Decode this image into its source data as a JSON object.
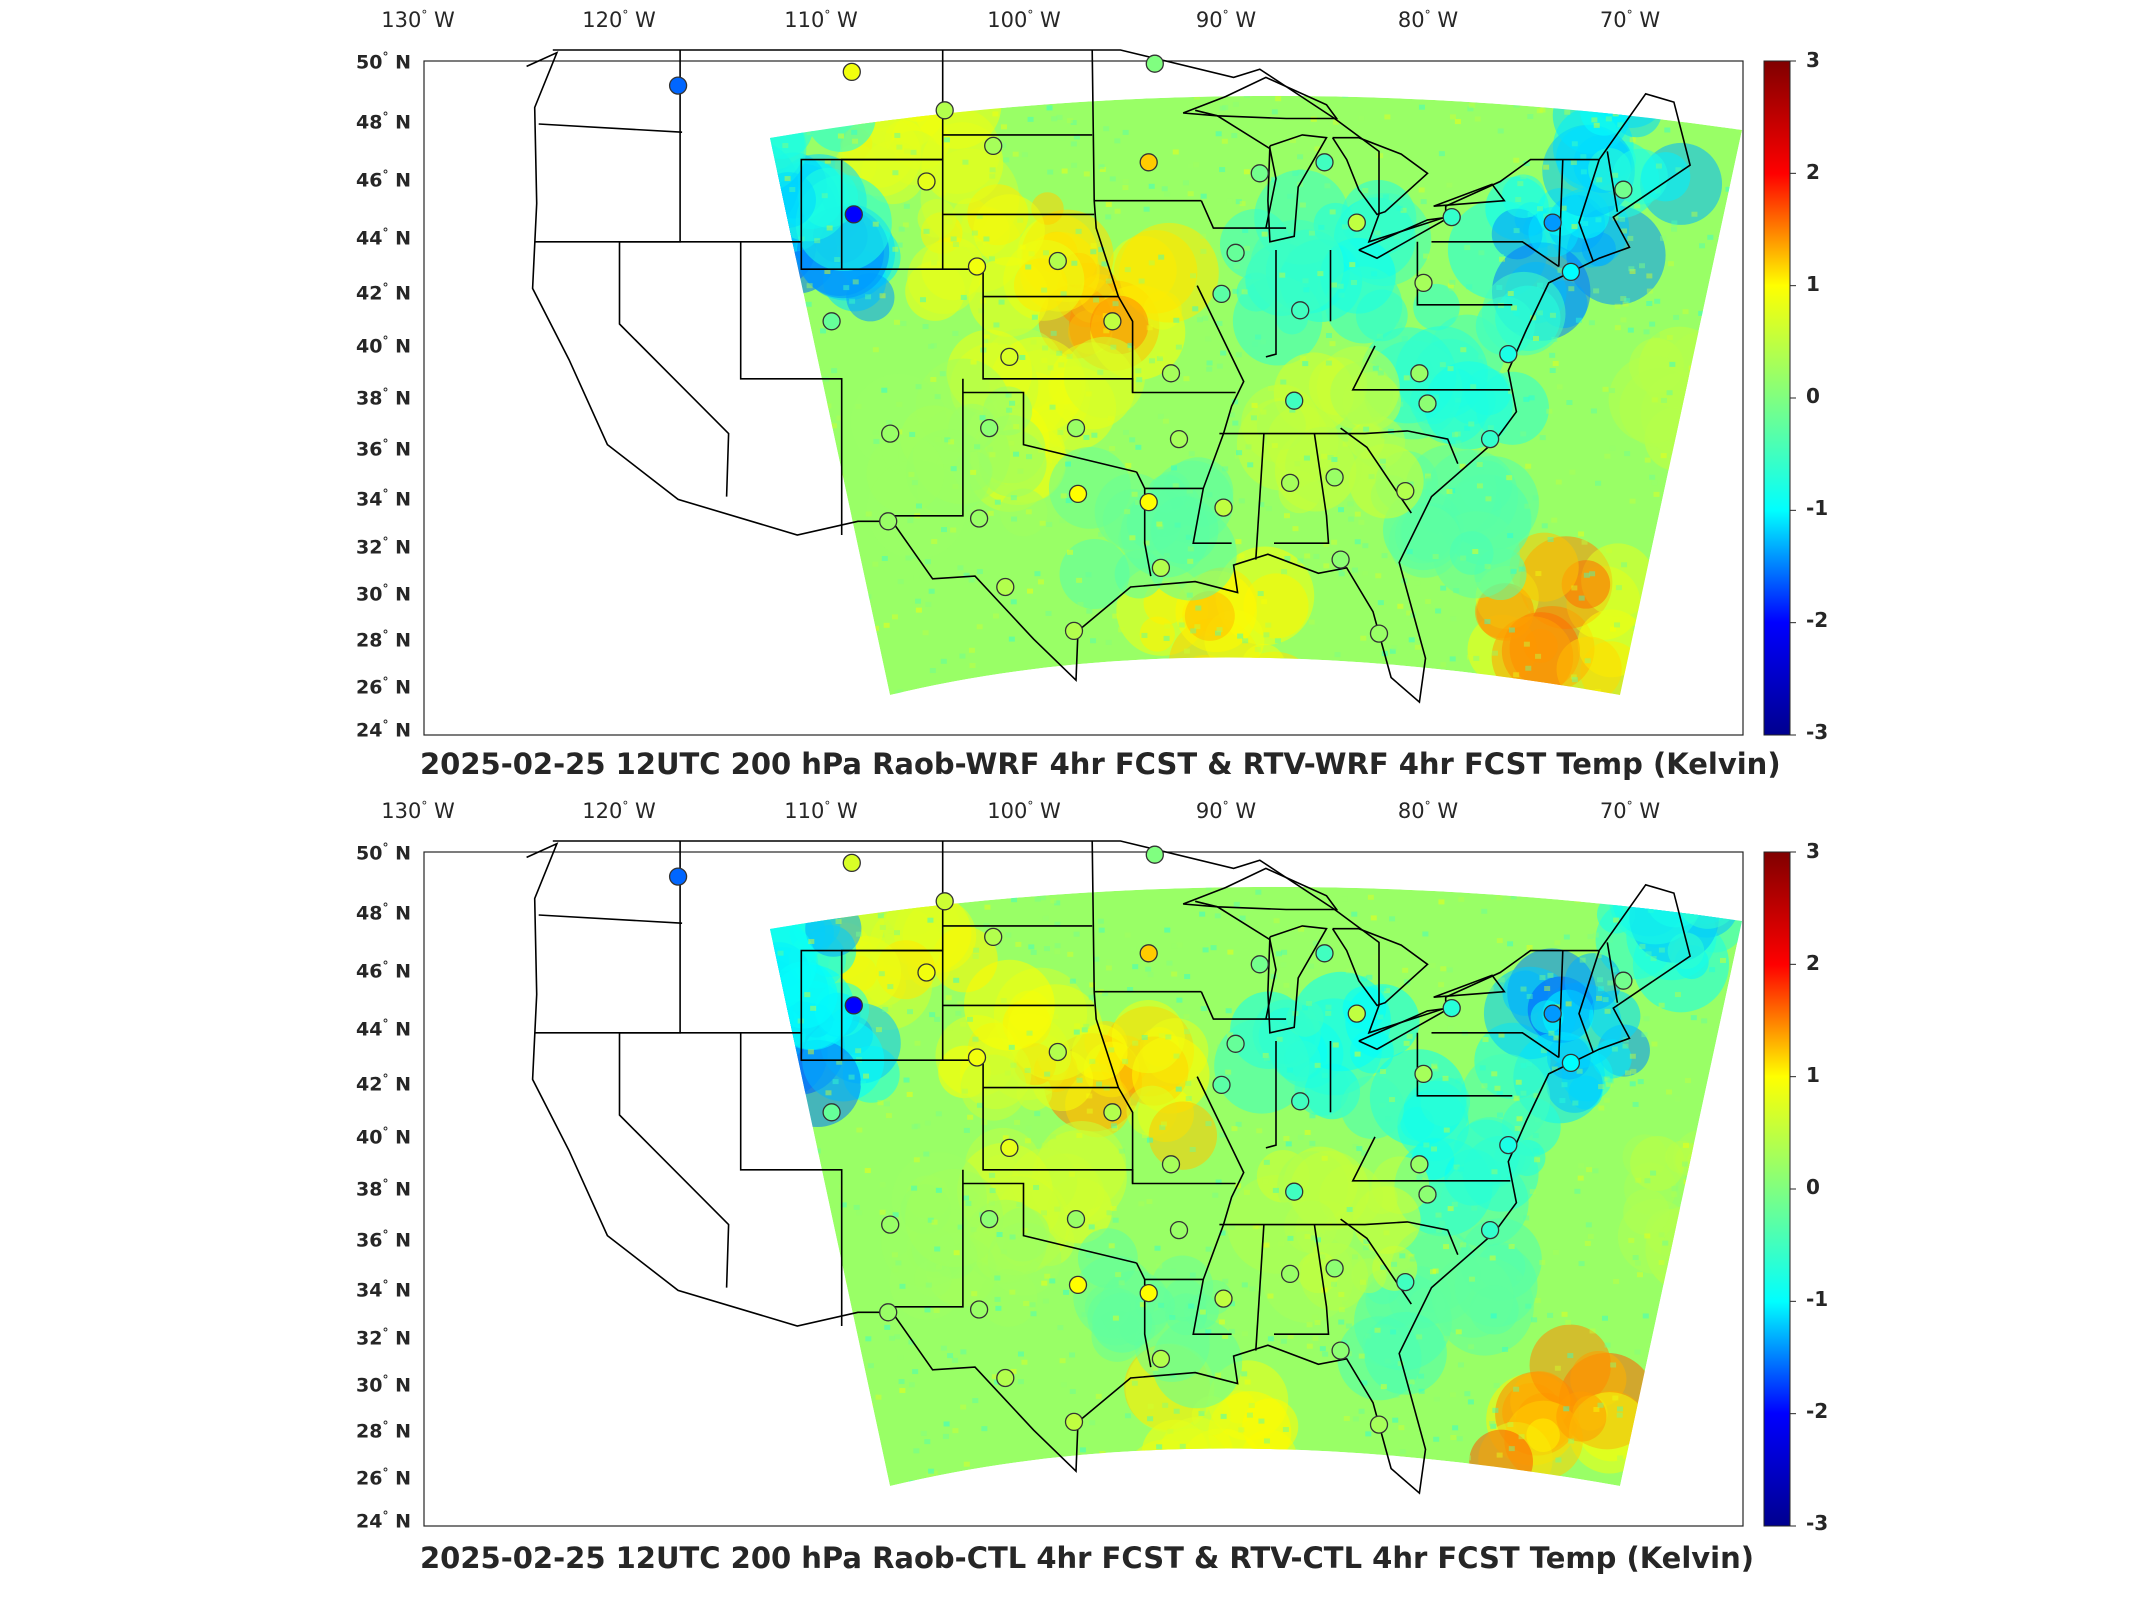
{
  "panels": [
    {
      "title": "2025-02-25 12UTC 200 hPa Raob-WRF 4hr FCST & RTV-WRF 4hr FCST Temp (Kelvin)",
      "lon_ticks": [
        "130",
        "120",
        "110",
        "100",
        "90",
        "80",
        "70"
      ],
      "lon_unit": "W",
      "lat_ticks": [
        "50",
        "48",
        "46",
        "44",
        "42",
        "40",
        "38",
        "36",
        "34",
        "32",
        "30",
        "28",
        "26",
        "24"
      ],
      "lat_unit": "N",
      "colorbar": {
        "ticks": [
          "3",
          "2",
          "1",
          "0",
          "-1",
          "-2",
          "-3"
        ],
        "range": [
          -3,
          3
        ],
        "units": "Kelvin"
      }
    },
    {
      "title": "2025-02-25 12UTC 200 hPa Raob-CTL 4hr FCST & RTV-CTL 4hr FCST Temp (Kelvin)",
      "lon_ticks": [
        "130",
        "120",
        "110",
        "100",
        "90",
        "80",
        "70"
      ],
      "lon_unit": "W",
      "lat_ticks": [
        "50",
        "48",
        "46",
        "44",
        "42",
        "40",
        "38",
        "36",
        "34",
        "32",
        "30",
        "28",
        "26",
        "24"
      ],
      "lat_unit": "N",
      "colorbar": {
        "ticks": [
          "3",
          "2",
          "1",
          "0",
          "-1",
          "-2",
          "-3"
        ],
        "range": [
          -3,
          3
        ],
        "units": "Kelvin"
      }
    }
  ],
  "colormap": [
    "#00008f",
    "#0000ff",
    "#00ffff",
    "#80ff80",
    "#ffff00",
    "#ff0000",
    "#800000"
  ],
  "raob_stations": [
    {
      "lon": -117.1,
      "lat": 47.7,
      "top": -1.6,
      "bottom": -1.6
    },
    {
      "lon": -108.5,
      "lat": 48.2,
      "top": 0.9,
      "bottom": 0.7
    },
    {
      "lon": -103.9,
      "lat": 46.8,
      "top": 0.4,
      "bottom": 0.6
    },
    {
      "lon": -101.5,
      "lat": 45.5,
      "top": 0.3,
      "bottom": 0.4
    },
    {
      "lon": -104.8,
      "lat": 44.2,
      "top": 0.8,
      "bottom": 0.9
    },
    {
      "lon": -108.4,
      "lat": 43.0,
      "top": -2.0,
      "bottom": -2.0
    },
    {
      "lon": -93.5,
      "lat": 48.5,
      "top": 0.0,
      "bottom": 0.0
    },
    {
      "lon": -93.8,
      "lat": 44.9,
      "top": 1.2,
      "bottom": 1.2
    },
    {
      "lon": -102.3,
      "lat": 41.1,
      "top": 0.9,
      "bottom": 0.9
    },
    {
      "lon": -98.3,
      "lat": 41.3,
      "top": 0.4,
      "bottom": 0.4
    },
    {
      "lon": -89.5,
      "lat": 41.6,
      "top": -0.2,
      "bottom": -0.2
    },
    {
      "lon": -88.3,
      "lat": 44.5,
      "top": -0.1,
      "bottom": -0.1
    },
    {
      "lon": -85.1,
      "lat": 44.9,
      "top": -0.5,
      "bottom": -0.5
    },
    {
      "lon": -83.5,
      "lat": 42.7,
      "top": 0.5,
      "bottom": 0.5
    },
    {
      "lon": -78.8,
      "lat": 42.9,
      "top": -0.6,
      "bottom": -0.7
    },
    {
      "lon": -73.8,
      "lat": 42.7,
      "top": -1.4,
      "bottom": -1.4
    },
    {
      "lon": -70.3,
      "lat": 43.9,
      "top": -0.1,
      "bottom": -0.1
    },
    {
      "lon": -72.9,
      "lat": 40.9,
      "top": -1.0,
      "bottom": -1.0
    },
    {
      "lon": -80.2,
      "lat": 40.5,
      "top": 0.3,
      "bottom": 0.3
    },
    {
      "lon": -86.3,
      "lat": 39.5,
      "top": -0.5,
      "bottom": -0.5
    },
    {
      "lon": -90.2,
      "lat": 40.1,
      "top": -0.3,
      "bottom": -0.3
    },
    {
      "lon": -95.6,
      "lat": 39.1,
      "top": 0.5,
      "bottom": 0.4
    },
    {
      "lon": -100.7,
      "lat": 37.8,
      "top": 0.7,
      "bottom": 0.8
    },
    {
      "lon": -109.5,
      "lat": 39.1,
      "top": -0.2,
      "bottom": -0.2
    },
    {
      "lon": -92.7,
      "lat": 37.2,
      "top": 0.3,
      "bottom": 0.3
    },
    {
      "lon": -80.4,
      "lat": 37.2,
      "top": 0.2,
      "bottom": 0.2
    },
    {
      "lon": -76.0,
      "lat": 37.9,
      "top": -0.8,
      "bottom": -0.8
    },
    {
      "lon": -86.6,
      "lat": 36.2,
      "top": -0.5,
      "bottom": -0.5
    },
    {
      "lon": -80.0,
      "lat": 36.1,
      "top": 0.1,
      "bottom": 0.1
    },
    {
      "lon": -76.9,
      "lat": 34.8,
      "top": -0.6,
      "bottom": -0.6
    },
    {
      "lon": -106.6,
      "lat": 35.0,
      "top": 0.2,
      "bottom": 0.2
    },
    {
      "lon": -101.7,
      "lat": 35.2,
      "top": 0.1,
      "bottom": 0.1
    },
    {
      "lon": -97.4,
      "lat": 35.2,
      "top": 0.2,
      "bottom": 0.2
    },
    {
      "lon": -92.3,
      "lat": 34.8,
      "top": 0.3,
      "bottom": 0.2
    },
    {
      "lon": -86.8,
      "lat": 33.2,
      "top": 0.3,
      "bottom": 0.2
    },
    {
      "lon": -84.6,
      "lat": 33.4,
      "top": 0.2,
      "bottom": 0.1
    },
    {
      "lon": -81.1,
      "lat": 32.9,
      "top": 0.4,
      "bottom": -0.5
    },
    {
      "lon": -90.1,
      "lat": 32.3,
      "top": 0.5,
      "bottom": 0.5
    },
    {
      "lon": -97.3,
      "lat": 32.8,
      "top": 1.0,
      "bottom": 1.0
    },
    {
      "lon": -93.8,
      "lat": 32.5,
      "top": 1.0,
      "bottom": 1.0
    },
    {
      "lon": -102.2,
      "lat": 31.9,
      "top": 0.2,
      "bottom": 0.2
    },
    {
      "lon": -106.7,
      "lat": 31.8,
      "top": 0.2,
      "bottom": 0.2
    },
    {
      "lon": -100.9,
      "lat": 29.4,
      "top": 0.4,
      "bottom": 0.4
    },
    {
      "lon": -97.5,
      "lat": 27.8,
      "top": 0.4,
      "bottom": 0.5
    },
    {
      "lon": -93.2,
      "lat": 30.1,
      "top": 0.4,
      "bottom": 0.4
    },
    {
      "lon": -84.3,
      "lat": 30.4,
      "top": 0.1,
      "bottom": 0.1
    },
    {
      "lon": -82.4,
      "lat": 27.7,
      "top": 0.2,
      "bottom": 0.3
    }
  ]
}
